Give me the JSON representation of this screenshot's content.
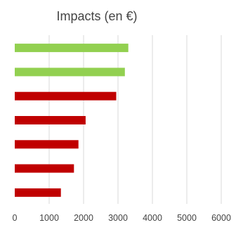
{
  "chart_data": {
    "type": "bar",
    "orientation": "horizontal",
    "title": "Impacts (en €)",
    "xlabel": "",
    "ylabel": "",
    "xlim": [
      0,
      6000
    ],
    "x_ticks": [
      0,
      1000,
      2000,
      3000,
      4000,
      5000,
      6000
    ],
    "grid": "vertical",
    "legend": "none",
    "values": [
      3300,
      3200,
      2950,
      2060,
      1850,
      1720,
      1340
    ],
    "colors": [
      "#92d050",
      "#92d050",
      "#c00000",
      "#c00000",
      "#c00000",
      "#c00000",
      "#c00000"
    ]
  }
}
